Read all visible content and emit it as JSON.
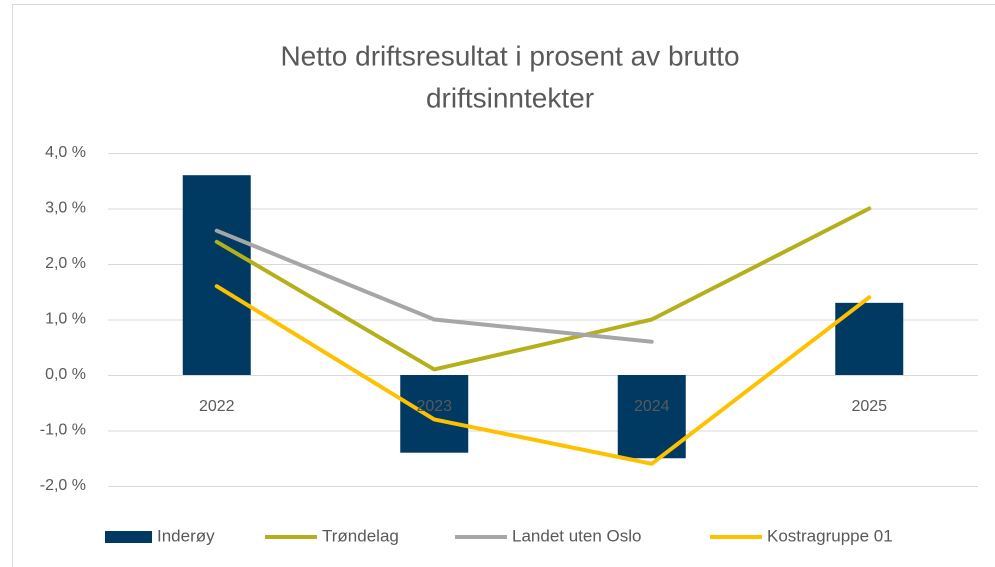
{
  "chart_data": {
    "type": "combo",
    "title": [
      "Netto driftsresultat i prosent av brutto",
      "driftsinntekter"
    ],
    "categories": [
      "2022",
      "2023",
      "2024",
      "2025"
    ],
    "series": [
      {
        "name": "Inderøy",
        "type": "bar",
        "color": "#003a63",
        "values": [
          3.6,
          -1.4,
          -1.5,
          1.3
        ]
      },
      {
        "name": "Trøndelag",
        "type": "line",
        "color": "#b4b01c",
        "values": [
          2.4,
          0.1,
          1.0,
          3.0
        ]
      },
      {
        "name": "Landet uten Oslo",
        "type": "line",
        "color": "#a6a6a6",
        "values": [
          2.6,
          1.0,
          0.6,
          null
        ]
      },
      {
        "name": "Kostragruppe 01",
        "type": "line",
        "color": "#ffc000",
        "values": [
          1.6,
          -0.8,
          -1.6,
          1.4
        ]
      }
    ],
    "ylim": [
      -2,
      4
    ],
    "yticks": [
      {
        "value": -2,
        "label": "-2,0 %"
      },
      {
        "value": -1,
        "label": "-1,0 %"
      },
      {
        "value": 0,
        "label": "0,0 %"
      },
      {
        "value": 1,
        "label": "1,0 %"
      },
      {
        "value": 2,
        "label": "2,0 %"
      },
      {
        "value": 3,
        "label": "3,0 %"
      },
      {
        "value": 4,
        "label": "4,0 %"
      }
    ],
    "grid": true,
    "legend": "bottom"
  }
}
